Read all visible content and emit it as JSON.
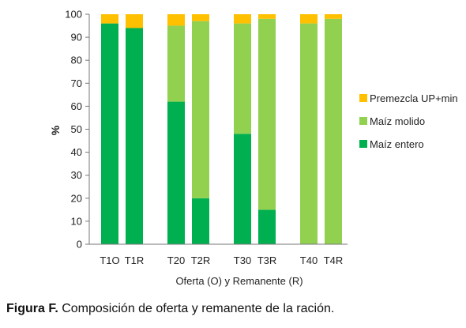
{
  "chart_data": {
    "type": "bar",
    "stacked": true,
    "categories": [
      "T1O",
      "T1R",
      "T2O",
      "T2R",
      "T3O",
      "T3R",
      "T4O",
      "T4R"
    ],
    "tick_labels": [
      "T1O",
      "T1R",
      "T20",
      "T2R",
      "T30",
      "T3R",
      "T40",
      "T4R"
    ],
    "series": [
      {
        "name": "Maíz entero",
        "color": "#00b050",
        "values": [
          96,
          94,
          62,
          20,
          48,
          15,
          0,
          0
        ]
      },
      {
        "name": "Maíz molido",
        "color": "#92d050",
        "values": [
          0,
          0,
          33,
          77,
          48,
          83,
          96,
          98
        ]
      },
      {
        "name": "Premezcla UP+min",
        "color": "#ffc000",
        "values": [
          4,
          6,
          5,
          3,
          4,
          2,
          4,
          2
        ]
      }
    ],
    "ylabel": "%",
    "xlabel": "Oferta (O) y Remanente  (R)",
    "ylim": [
      0,
      100
    ],
    "yticks": [
      0,
      10,
      20,
      30,
      40,
      50,
      60,
      70,
      80,
      90,
      100
    ],
    "legend_position": "right",
    "grid": false
  },
  "caption": {
    "label": "Figura F.",
    "text": " Composición de oferta y remanente de la ración."
  }
}
